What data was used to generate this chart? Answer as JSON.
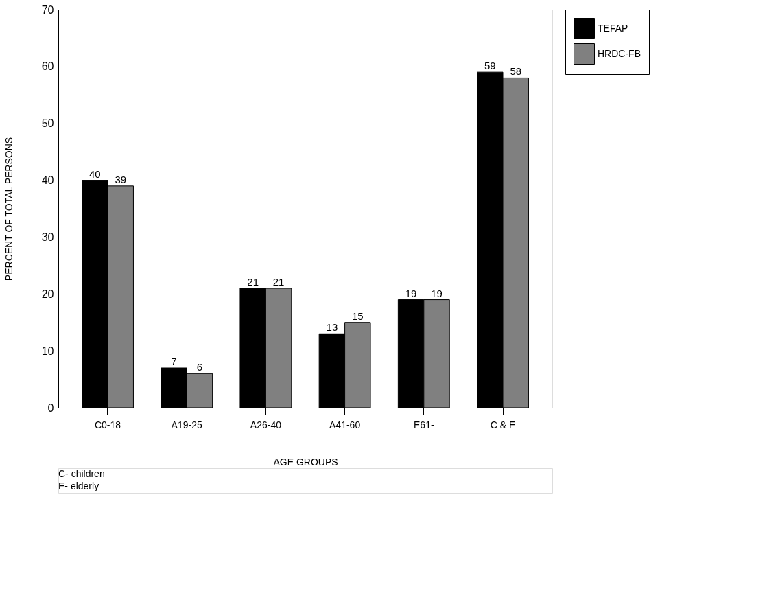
{
  "chart_data": {
    "type": "bar",
    "xlabel": "AGE GROUPS",
    "ylabel": "PERCENT OF TOTAL PERSONS",
    "categories": [
      "C0-18",
      "A19-25",
      "A26-40",
      "A41-60",
      "E61-",
      "C & E"
    ],
    "series": [
      {
        "name": "TEFAP",
        "color": "#000000",
        "values": [
          40,
          7,
          21,
          13,
          19,
          59
        ]
      },
      {
        "name": "HRDC-FB",
        "color": "#808080",
        "values": [
          39,
          6,
          21,
          15,
          19,
          58
        ]
      }
    ],
    "ylim": [
      0,
      70
    ],
    "yticks": [
      0,
      10,
      20,
      30,
      40,
      50,
      60,
      70
    ],
    "grid": "y",
    "legend": "top right",
    "data_labels": true,
    "annotations": [
      "C- children",
      "E- elderly"
    ]
  }
}
